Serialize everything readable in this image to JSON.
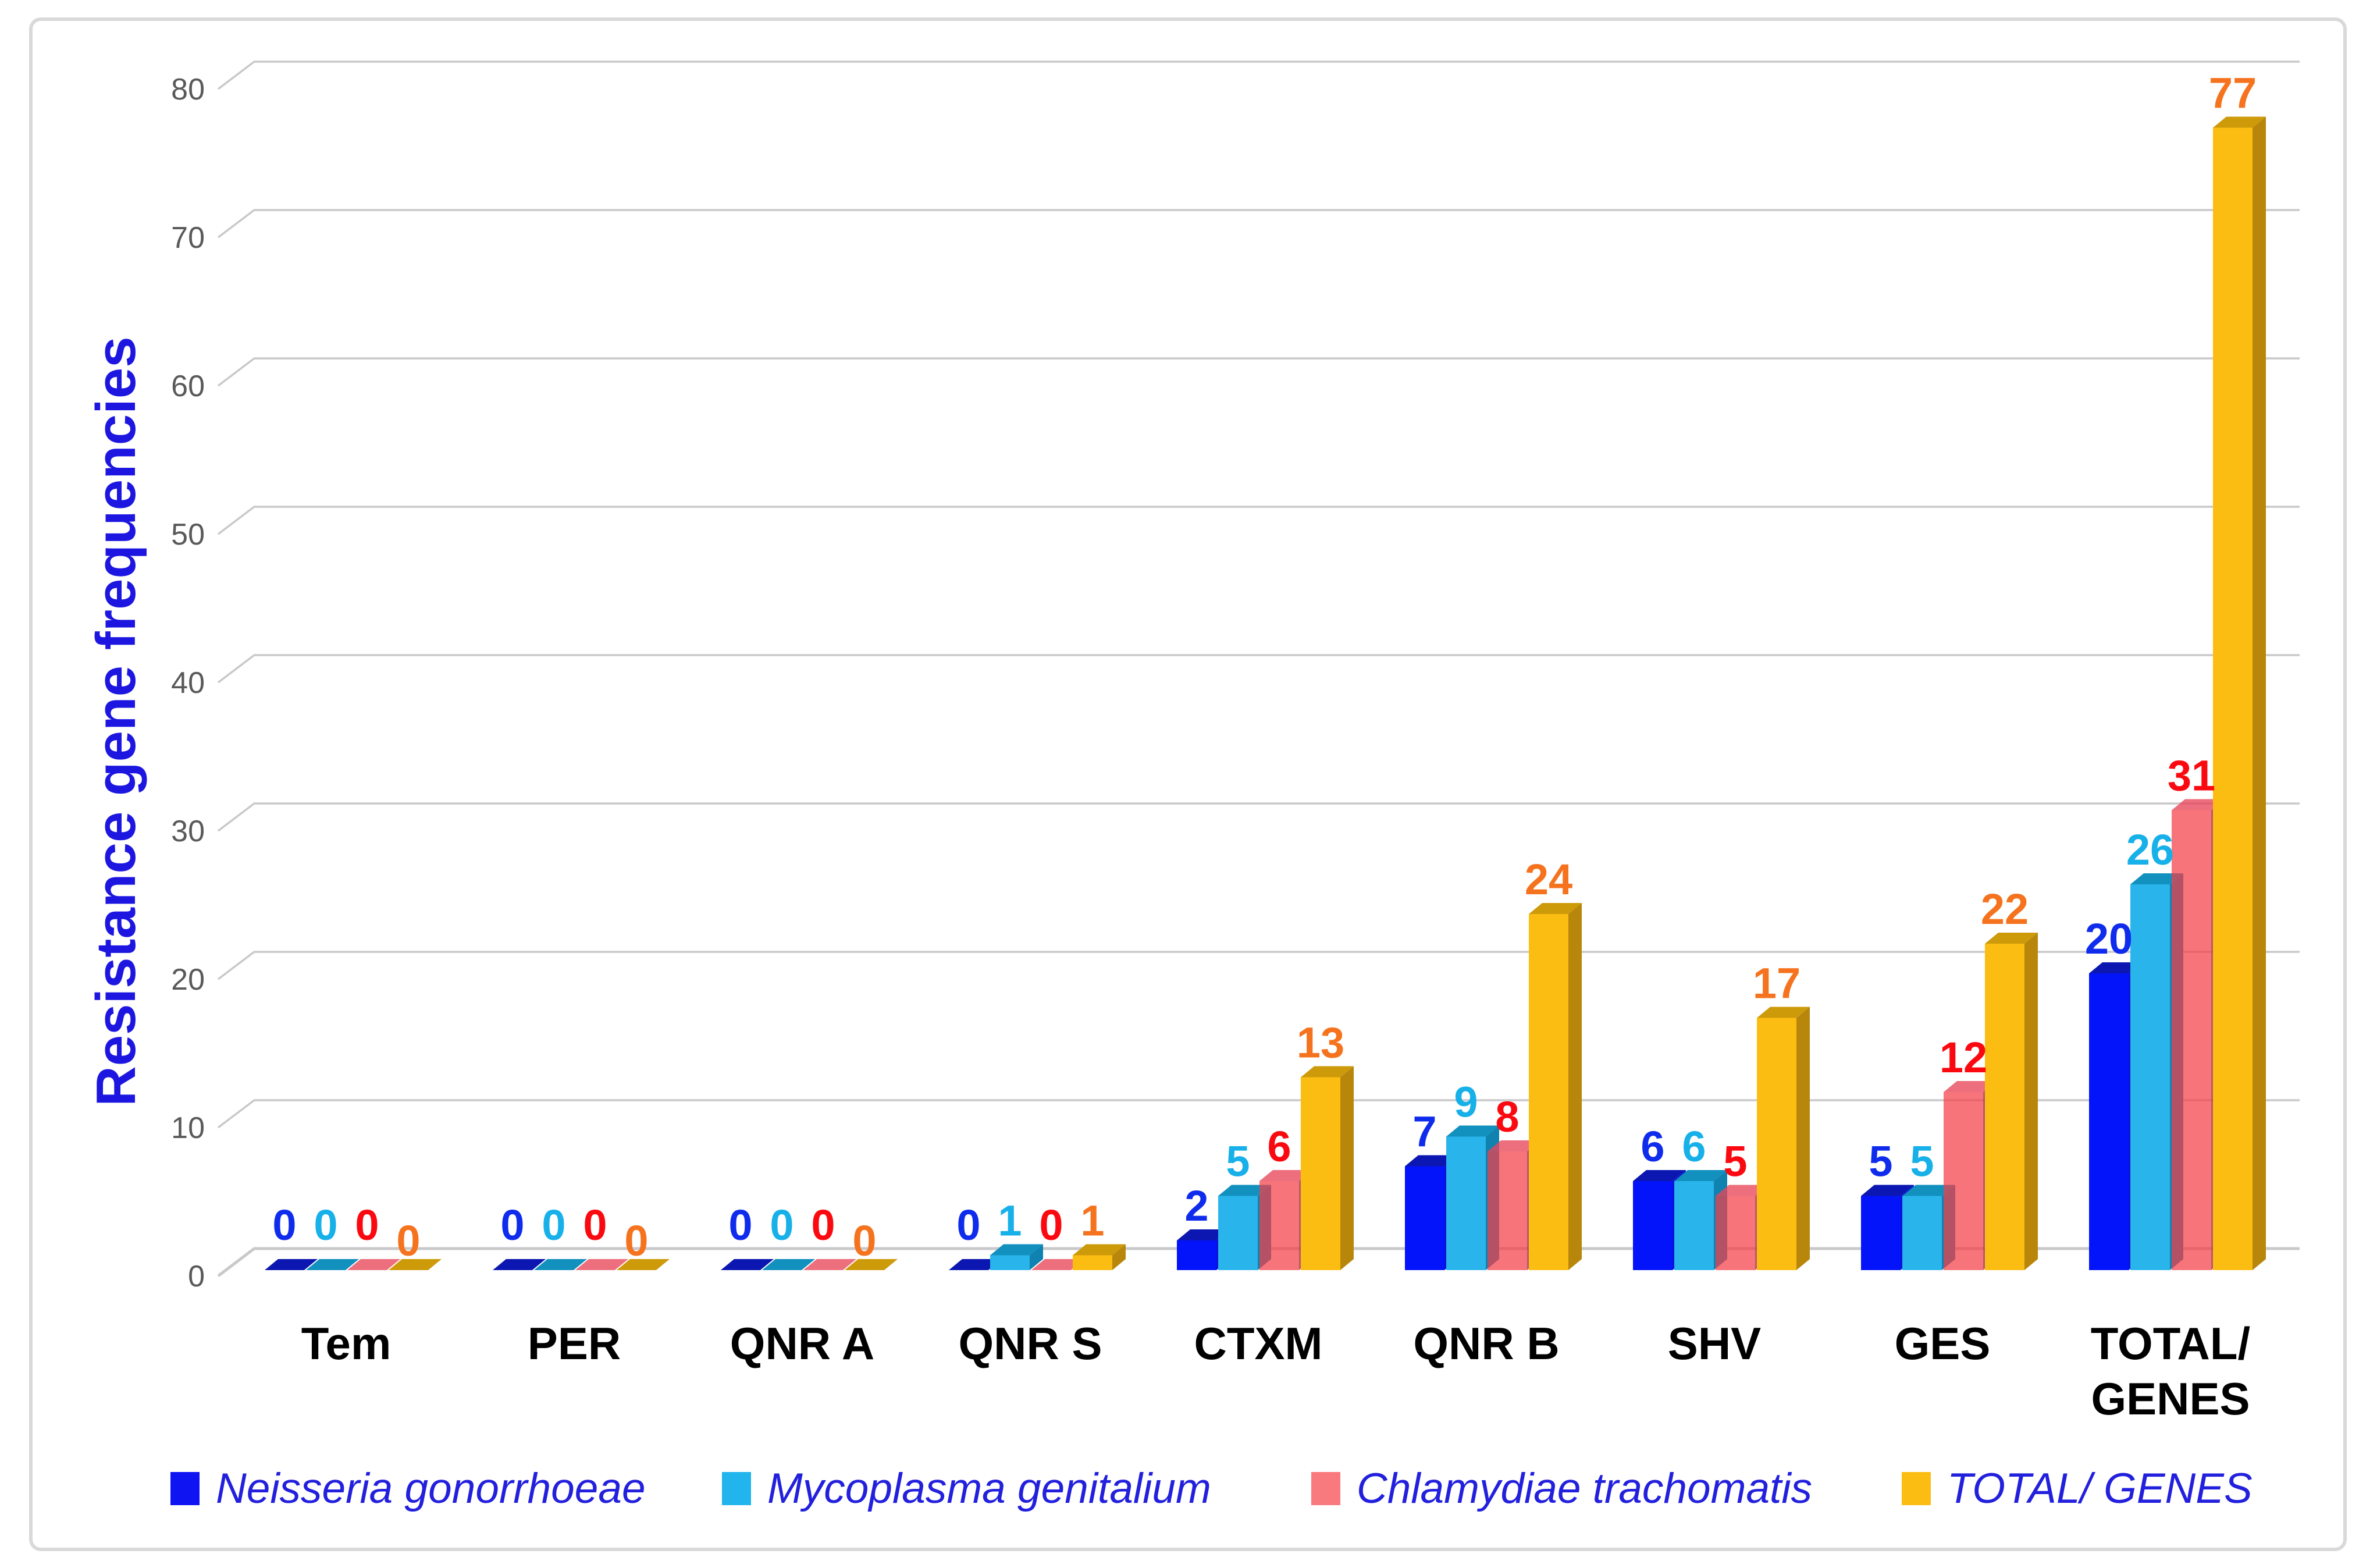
{
  "chart_data": {
    "type": "bar",
    "style": "3d-clustered",
    "title": "",
    "xlabel": "",
    "ylabel": "Resistance gene frequencies",
    "ylim": [
      0,
      80
    ],
    "ytick_step": 10,
    "ytick_labels": [
      "0",
      "10",
      "20",
      "30",
      "40",
      "50",
      "60",
      "70",
      "80"
    ],
    "grid": true,
    "legend_position": "bottom",
    "categories": [
      "Tem",
      "PER",
      "QNR A",
      "QNR S",
      "CTXM",
      "QNR B",
      "SHV",
      "GES",
      "TOTAL/\nGENES"
    ],
    "series": [
      {
        "name": "Neisseria gonorrhoeae",
        "values": [
          0,
          0,
          0,
          0,
          2,
          7,
          6,
          5,
          20
        ],
        "color": "#0f14f2",
        "front_fill": "#0414fa",
        "top_fill": "#0b17b0",
        "side_fill": "#0912d6",
        "front_opacity": 1,
        "label_color": "#0f2ced"
      },
      {
        "name": "Mycoplasma genitalium",
        "values": [
          0,
          0,
          0,
          1,
          5,
          9,
          6,
          5,
          26
        ],
        "color": "#22b4ec",
        "front_fill": "#29b5ec",
        "top_fill": "#1290be",
        "side_fill": "#0f82b0",
        "front_opacity": 1,
        "label_color": "#17b0e9"
      },
      {
        "name": "Chlamydiae trachomatis",
        "values": [
          0,
          0,
          0,
          0,
          6,
          8,
          5,
          12,
          31
        ],
        "color": "#f8797e",
        "front_fill": "rgba(244,62,70,0.72)",
        "top_fill": "rgba(232,70,90,0.78)",
        "side_fill": "rgba(170,60,80,0.85)",
        "front_opacity": 1,
        "label_color": "#fa0a10"
      },
      {
        "name": "TOTAL/ GENES",
        "values": [
          0,
          0,
          0,
          1,
          13,
          24,
          17,
          22,
          77
        ],
        "color": "#fcbd13",
        "front_fill": "#fcbd13",
        "top_fill": "#cd9a0a",
        "side_fill": "#b8860b",
        "front_opacity": 1,
        "label_color": "#f5731e"
      }
    ],
    "axis_tick_color": "#595959",
    "gridline_color": "#c9c9cc",
    "category_label_color": "#000000",
    "legend_text_color": "#2220dd"
  }
}
